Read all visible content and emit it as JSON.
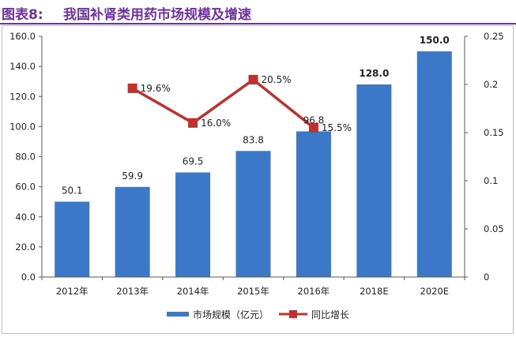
{
  "title": {
    "prefix": "图表8:",
    "text": "我国补肾类用药市场规模及增速"
  },
  "colors": {
    "title": "#7030a0",
    "bar": "#3b78c8",
    "line": "#c0312d",
    "axis": "#595959",
    "text": "#222222"
  },
  "chart_data": {
    "type": "bar",
    "categories": [
      "2012年",
      "2013年",
      "2014年",
      "2015年",
      "2016年",
      "2018E",
      "2020E"
    ],
    "series": [
      {
        "name": "市场规模（亿元）",
        "type": "bar",
        "axis": "left",
        "values": [
          50.1,
          59.9,
          69.5,
          83.8,
          96.8,
          128.0,
          150.0
        ],
        "labels": [
          "50.1",
          "59.9",
          "69.5",
          "83.8",
          "96.8",
          "128.0",
          "150.0"
        ]
      },
      {
        "name": "同比增长",
        "type": "line",
        "axis": "right",
        "values": [
          null,
          0.196,
          0.16,
          0.205,
          0.155,
          null,
          null
        ],
        "labels": [
          "",
          "19.6%",
          "16.0%",
          "20.5%",
          "15.5%",
          "",
          ""
        ]
      }
    ],
    "left_axis": {
      "ylim": [
        0,
        160
      ],
      "ticks": [
        "0.0",
        "20.0",
        "40.0",
        "60.0",
        "80.0",
        "100.0",
        "120.0",
        "140.0",
        "160.0"
      ]
    },
    "right_axis": {
      "ylim": [
        0,
        0.25
      ],
      "ticks": [
        "0",
        "0.05",
        "0.1",
        "0.15",
        "0.2",
        "0.25"
      ]
    },
    "grid": false,
    "legend": "bottom-center"
  }
}
